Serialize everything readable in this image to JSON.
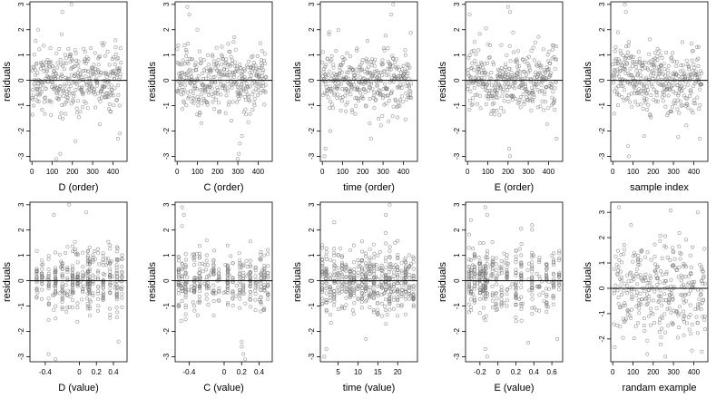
{
  "figure": {
    "ylabel": "residuals",
    "marker_color": "#777777",
    "frame_color": "#000000",
    "zero_line_color": "#000000"
  },
  "chart_data": [
    {
      "type": "scatter",
      "xlabel": "D (order)",
      "ylabel": "residuals",
      "xlim": [
        -10,
        470
      ],
      "ylim": [
        -3.2,
        3.1
      ],
      "xticks": [
        0,
        100,
        200,
        300,
        400
      ],
      "xtick_labels": [
        "0",
        "100",
        "200",
        "300",
        "400"
      ],
      "yticks": [
        -3,
        -2,
        -1,
        0,
        1,
        2,
        3
      ],
      "ytick_labels": [
        "-3",
        "-2",
        "-1",
        "0",
        "1",
        "2",
        "3"
      ],
      "hline": 0,
      "pattern": "index",
      "seed": 11,
      "outliers": [
        [
          150,
          2.7
        ],
        [
          195,
          3.0
        ],
        [
          140,
          -2.9
        ],
        [
          120,
          -3.1
        ],
        [
          215,
          -2.4
        ],
        [
          425,
          -2.3
        ],
        [
          435,
          -2.1
        ],
        [
          30,
          2.0
        ]
      ]
    },
    {
      "type": "scatter",
      "xlabel": "C (order)",
      "ylabel": "residuals",
      "xlim": [
        -10,
        470
      ],
      "ylim": [
        -3.2,
        3.1
      ],
      "xticks": [
        0,
        100,
        200,
        300,
        400
      ],
      "xtick_labels": [
        "0",
        "100",
        "200",
        "300",
        "400"
      ],
      "yticks": [
        -3,
        -2,
        -1,
        0,
        1,
        2,
        3
      ],
      "ytick_labels": [
        "-3",
        "-2",
        "-1",
        "0",
        "1",
        "2",
        "3"
      ],
      "hline": 0,
      "pattern": "index",
      "seed": 23,
      "outliers": [
        [
          50,
          2.9
        ],
        [
          60,
          2.6
        ],
        [
          310,
          -2.5
        ],
        [
          305,
          -2.9
        ],
        [
          300,
          -3.1
        ],
        [
          320,
          -2.2
        ],
        [
          100,
          2.0
        ]
      ]
    },
    {
      "type": "scatter",
      "xlabel": "time (order)",
      "ylabel": "residuals",
      "xlim": [
        -10,
        470
      ],
      "ylim": [
        -3.2,
        3.1
      ],
      "xticks": [
        0,
        100,
        200,
        300,
        400
      ],
      "xtick_labels": [
        "0",
        "100",
        "200",
        "300",
        "400"
      ],
      "yticks": [
        -3,
        -2,
        -1,
        0,
        1,
        2,
        3
      ],
      "ytick_labels": [
        "-3",
        "-2",
        "-1",
        "0",
        "1",
        "2",
        "3"
      ],
      "hline": 0,
      "pattern": "index",
      "seed": 37,
      "outliers": [
        [
          15,
          -2.7
        ],
        [
          10,
          -3.0
        ],
        [
          350,
          3.0
        ],
        [
          340,
          2.6
        ],
        [
          240,
          -2.3
        ],
        [
          40,
          -2.0
        ]
      ]
    },
    {
      "type": "scatter",
      "xlabel": "E (order)",
      "ylabel": "residuals",
      "xlim": [
        -10,
        470
      ],
      "ylim": [
        -3.2,
        3.1
      ],
      "xticks": [
        0,
        100,
        200,
        300,
        400
      ],
      "xtick_labels": [
        "0",
        "100",
        "200",
        "300",
        "400"
      ],
      "yticks": [
        -3,
        -2,
        -1,
        0,
        1,
        2,
        3
      ],
      "ytick_labels": [
        "-3",
        "-2",
        "-1",
        "0",
        "1",
        "2",
        "3"
      ],
      "hline": 0,
      "pattern": "index",
      "seed": 41,
      "outliers": [
        [
          200,
          2.9
        ],
        [
          210,
          2.7
        ],
        [
          205,
          -2.7
        ],
        [
          210,
          -3.0
        ],
        [
          440,
          -2.3
        ],
        [
          10,
          2.6
        ]
      ]
    },
    {
      "type": "scatter",
      "xlabel": "sample index",
      "ylabel": "residuals",
      "xlim": [
        -10,
        470
      ],
      "ylim": [
        -3.2,
        3.1
      ],
      "xticks": [
        0,
        100,
        200,
        300,
        400
      ],
      "xtick_labels": [
        "0",
        "100",
        "200",
        "300",
        "400"
      ],
      "yticks": [
        -3,
        -2,
        -1,
        0,
        1,
        2,
        3
      ],
      "ytick_labels": [
        "-3",
        "-2",
        "-1",
        "0",
        "1",
        "2",
        "3"
      ],
      "hline": 0,
      "pattern": "index",
      "seed": 53,
      "outliers": [
        [
          60,
          3.0
        ],
        [
          65,
          2.7
        ],
        [
          75,
          -2.6
        ],
        [
          80,
          -3.0
        ],
        [
          155,
          -2.2
        ],
        [
          430,
          -2.3
        ],
        [
          25,
          1.9
        ]
      ]
    },
    {
      "type": "scatter",
      "xlabel": "D (value)",
      "ylabel": "residuals",
      "xlim": [
        -0.58,
        0.56
      ],
      "ylim": [
        -3.2,
        3.1
      ],
      "xticks": [
        -0.4,
        0,
        0.2,
        0.4
      ],
      "xtick_labels": [
        "-0.4",
        "0",
        "0.2",
        "0.4"
      ],
      "yticks": [
        -3,
        -2,
        -1,
        0,
        1,
        2,
        3
      ],
      "ytick_labels": [
        "-3",
        "-2",
        "-1",
        "0",
        "1",
        "2",
        "3"
      ],
      "hline": 0,
      "pattern": "columns",
      "seed": 61,
      "columns": [
        -0.5,
        -0.44,
        -0.36,
        -0.28,
        -0.2,
        -0.14,
        -0.08,
        -0.02,
        0.04,
        0.1,
        0.12,
        0.16,
        0.22,
        0.28,
        0.36,
        0.44,
        0.5
      ],
      "outliers": [
        [
          -0.12,
          3.0
        ],
        [
          0.08,
          2.7
        ],
        [
          -0.28,
          -3.1
        ],
        [
          -0.36,
          -2.9
        ],
        [
          0.46,
          -2.4
        ],
        [
          -0.3,
          2.6
        ]
      ]
    },
    {
      "type": "scatter",
      "xlabel": "C (value)",
      "ylabel": "residuals",
      "xlim": [
        -0.56,
        0.55
      ],
      "ylim": [
        -3.2,
        3.1
      ],
      "xticks": [
        -0.4,
        0,
        0.2,
        0.4
      ],
      "xtick_labels": [
        "-0.4",
        "0",
        "0.2",
        "0.4"
      ],
      "yticks": [
        -3,
        -2,
        -1,
        0,
        1,
        2,
        3
      ],
      "ytick_labels": [
        "-3",
        "-2",
        "-1",
        "0",
        "1",
        "2",
        "3"
      ],
      "hline": 0,
      "pattern": "columns",
      "seed": 71,
      "columns": [
        -0.52,
        -0.48,
        -0.44,
        -0.34,
        -0.28,
        -0.2,
        -0.12,
        -0.06,
        0.04,
        0.1,
        0.18,
        0.22,
        0.3,
        0.36,
        0.42,
        0.46,
        0.5
      ],
      "outliers": [
        [
          -0.48,
          2.9
        ],
        [
          -0.46,
          2.6
        ],
        [
          0.2,
          -2.4
        ],
        [
          0.22,
          -2.9
        ],
        [
          0.24,
          -3.1
        ],
        [
          0.2,
          -2.6
        ]
      ]
    },
    {
      "type": "scatter",
      "xlabel": "time (value)",
      "ylabel": "residuals",
      "xlim": [
        0.5,
        25
      ],
      "ylim": [
        -3.2,
        3.1
      ],
      "xticks": [
        5,
        10,
        15,
        20
      ],
      "xtick_labels": [
        "5",
        "10",
        "15",
        "20"
      ],
      "yticks": [
        -3,
        -2,
        -1,
        0,
        1,
        2,
        3
      ],
      "ytick_labels": [
        "-3",
        "-2",
        "-1",
        "0",
        "1",
        "2",
        "3"
      ],
      "hline": 0,
      "pattern": "columns",
      "seed": 83,
      "columns": [
        1,
        2,
        3,
        4,
        5,
        6,
        7,
        8,
        9,
        10,
        11,
        12,
        13,
        14,
        15,
        16,
        17,
        18,
        19,
        20,
        21,
        22,
        23,
        24
      ],
      "outliers": [
        [
          2,
          -2.7
        ],
        [
          1.5,
          -3.0
        ],
        [
          18,
          3.0
        ],
        [
          17,
          2.6
        ],
        [
          12,
          -2.3
        ],
        [
          4,
          2.3
        ]
      ]
    },
    {
      "type": "scatter",
      "xlabel": "E (value)",
      "ylabel": "residuals",
      "xlim": [
        -0.36,
        0.72
      ],
      "ylim": [
        -3.2,
        3.1
      ],
      "xticks": [
        -0.2,
        0,
        0.2,
        0.4,
        0.6
      ],
      "xtick_labels": [
        "-0.2",
        "0",
        "0.2",
        "0.4",
        "0.6"
      ],
      "yticks": [
        -3,
        -2,
        -1,
        0,
        1,
        2,
        3
      ],
      "ytick_labels": [
        "-3",
        "-2",
        "-1",
        "0",
        "1",
        "2",
        "3"
      ],
      "hline": 0,
      "pattern": "columns",
      "seed": 97,
      "columns": [
        -0.32,
        -0.3,
        -0.26,
        -0.2,
        -0.16,
        -0.14,
        -0.12,
        -0.06,
        -0.02,
        0.04,
        0.1,
        0.2,
        0.26,
        0.38,
        0.46,
        0.54,
        0.62,
        0.68
      ],
      "outliers": [
        [
          -0.14,
          2.9
        ],
        [
          -0.12,
          2.6
        ],
        [
          -0.14,
          -2.7
        ],
        [
          -0.12,
          -3.0
        ],
        [
          0.66,
          -2.3
        ],
        [
          -0.3,
          2.4
        ]
      ]
    },
    {
      "type": "scatter",
      "xlabel": "randam example",
      "ylabel": "residuals",
      "xlim": [
        -10,
        470
      ],
      "ylim": [
        -2.9,
        3.4
      ],
      "xticks": [
        0,
        100,
        200,
        300,
        400
      ],
      "xtick_labels": [
        "0",
        "100",
        "200",
        "300",
        "400"
      ],
      "yticks": [
        -2,
        -1,
        0,
        1,
        2,
        3
      ],
      "ytick_labels": [
        "-2",
        "-1",
        "0",
        "1",
        "2",
        "3"
      ],
      "hline": 0,
      "pattern": "random",
      "seed": 101,
      "outliers": [
        [
          30,
          3.2
        ],
        [
          420,
          3.0
        ],
        [
          170,
          -2.6
        ],
        [
          260,
          -2.7
        ],
        [
          440,
          -2.5
        ],
        [
          90,
          2.5
        ]
      ]
    }
  ]
}
